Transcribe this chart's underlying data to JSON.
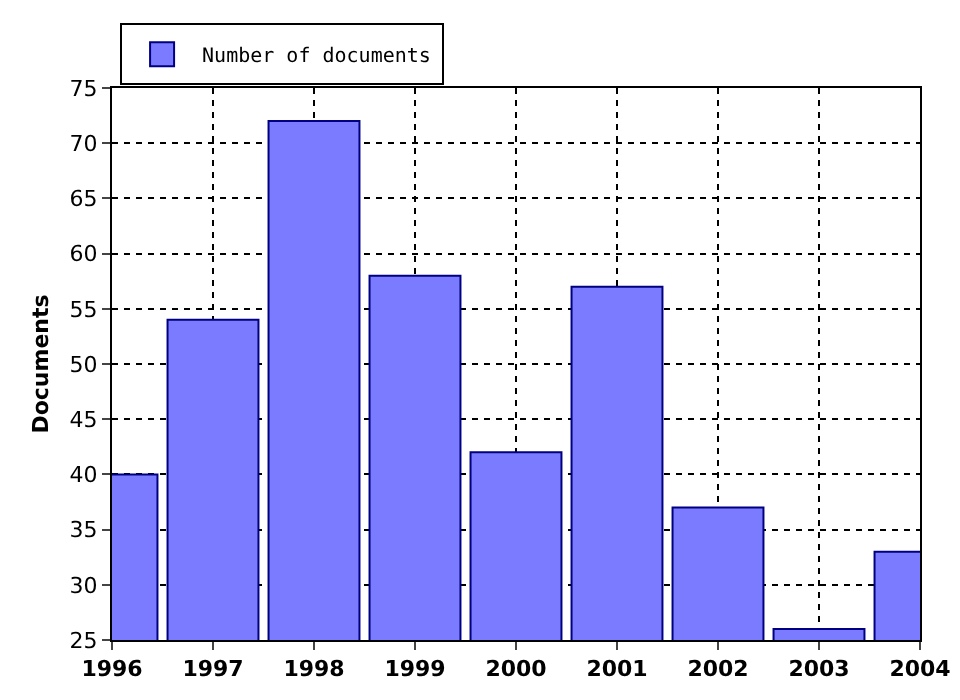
{
  "chart_data": {
    "type": "bar",
    "ylabel": "Documents",
    "x": [
      1996,
      1997,
      1998,
      1999,
      2000,
      2001,
      2002,
      2003,
      2004
    ],
    "series": [
      {
        "name": "Number of documents",
        "color": "#7b7bff",
        "values": [
          40,
          54,
          72,
          58,
          42,
          57,
          37,
          26,
          33
        ]
      }
    ],
    "xlim": [
      1996,
      2004
    ],
    "xticks": [
      1996,
      1997,
      1998,
      1999,
      2000,
      2001,
      2002,
      2003,
      2004
    ],
    "ylim": [
      25,
      75
    ],
    "yticks": [
      25,
      30,
      35,
      40,
      45,
      50,
      55,
      60,
      65,
      70,
      75
    ],
    "grid": true,
    "legend": "top left"
  }
}
